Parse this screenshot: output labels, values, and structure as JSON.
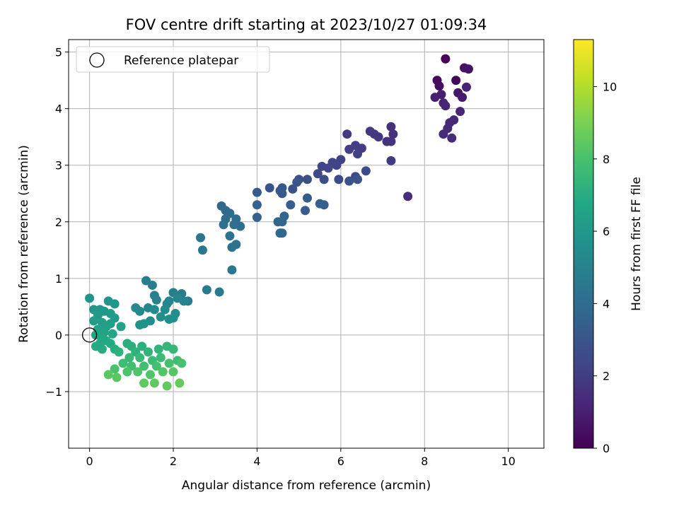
{
  "chart_data": {
    "type": "scatter",
    "title": "FOV centre drift starting at 2023/10/27 01:09:34",
    "xlabel": "Angular distance from reference (arcmin)",
    "ylabel": "Rotation from reference (arcmin)",
    "xlim": [
      -0.5,
      10.85
    ],
    "ylim": [
      -2.0,
      5.22
    ],
    "xticks": [
      0,
      2,
      4,
      6,
      8,
      10
    ],
    "xtick_labels": [
      "0",
      "2",
      "4",
      "6",
      "8",
      "10"
    ],
    "yticks": [
      -1,
      0,
      1,
      2,
      3,
      4,
      5
    ],
    "ytick_labels": [
      "−1",
      "0",
      "1",
      "2",
      "3",
      "4",
      "5"
    ],
    "grid": true,
    "legend": {
      "position": "top-left",
      "entries": [
        {
          "label": "Reference platepar",
          "marker": "open-circle"
        }
      ]
    },
    "reference_point": {
      "x": 0,
      "y": 0
    },
    "colorbar": {
      "label": "Hours from first FF file",
      "colormap": "viridis",
      "range": [
        0,
        11.3
      ],
      "ticks": [
        0,
        2,
        4,
        6,
        8,
        10
      ],
      "tick_labels": [
        "0",
        "2",
        "4",
        "6",
        "8",
        "10"
      ]
    },
    "series": [
      {
        "points": [
          [
            8.5,
            4.88,
            0.1
          ],
          [
            8.75,
            4.5,
            0.2
          ],
          [
            8.3,
            4.5,
            0.3
          ],
          [
            8.35,
            4.4,
            0.4
          ],
          [
            8.95,
            4.72,
            0.5
          ],
          [
            9.05,
            4.7,
            0.6
          ],
          [
            8.8,
            4.28,
            0.7
          ],
          [
            8.9,
            4.2,
            0.8
          ],
          [
            8.4,
            4.25,
            0.9
          ],
          [
            8.25,
            4.2,
            1.0
          ],
          [
            9.0,
            4.38,
            1.05
          ],
          [
            8.45,
            4.1,
            1.1
          ],
          [
            8.5,
            4.05,
            1.15
          ],
          [
            8.85,
            3.95,
            1.2
          ],
          [
            8.7,
            3.8,
            1.25
          ],
          [
            8.6,
            3.75,
            1.3
          ],
          [
            8.55,
            3.65,
            1.35
          ],
          [
            8.45,
            3.55,
            1.4
          ],
          [
            8.65,
            3.48,
            1.45
          ]
        ]
      },
      {
        "points": [
          [
            7.6,
            2.45,
            1.5
          ],
          [
            7.2,
            3.68,
            1.55
          ],
          [
            7.25,
            3.55,
            1.6
          ],
          [
            7.2,
            3.42,
            1.65
          ],
          [
            7.1,
            3.42,
            1.7
          ],
          [
            6.9,
            3.5,
            1.75
          ],
          [
            6.8,
            3.55,
            1.8
          ],
          [
            6.7,
            3.6,
            1.85
          ],
          [
            6.15,
            3.55,
            1.9
          ],
          [
            7.2,
            3.08,
            1.95
          ],
          [
            6.5,
            3.3,
            2.0
          ],
          [
            6.35,
            3.35,
            2.05
          ],
          [
            6.2,
            3.28,
            2.1
          ],
          [
            6.4,
            3.2,
            2.15
          ],
          [
            6.0,
            3.1,
            2.2
          ],
          [
            5.9,
            3.0,
            2.25
          ],
          [
            5.8,
            3.05,
            2.3
          ],
          [
            5.7,
            2.95,
            2.35
          ],
          [
            5.55,
            2.98,
            2.4
          ],
          [
            5.45,
            2.85,
            2.45
          ],
          [
            6.35,
            2.8,
            2.5
          ],
          [
            6.6,
            2.9,
            2.55
          ],
          [
            5.95,
            2.75,
            2.6
          ],
          [
            5.6,
            2.75,
            2.65
          ],
          [
            5.2,
            2.75,
            2.7
          ],
          [
            5.0,
            2.75,
            2.75
          ],
          [
            4.85,
            2.58,
            2.8
          ],
          [
            6.2,
            2.72,
            2.85
          ],
          [
            6.4,
            2.75,
            2.9
          ],
          [
            4.3,
            2.6,
            2.95
          ],
          [
            4.6,
            2.6,
            3.0
          ],
          [
            4.55,
            2.55,
            3.05
          ],
          [
            4.95,
            2.7,
            3.1
          ],
          [
            4.6,
            2.5,
            3.15
          ],
          [
            4.0,
            2.52,
            3.2
          ],
          [
            5.2,
            2.42,
            3.25
          ],
          [
            5.15,
            2.2,
            3.3
          ],
          [
            4.8,
            2.3,
            3.35
          ],
          [
            5.5,
            2.32,
            3.4
          ],
          [
            5.6,
            2.3,
            3.45
          ],
          [
            4.0,
            2.3,
            3.5
          ],
          [
            4.0,
            2.08,
            3.55
          ],
          [
            4.65,
            2.1,
            3.6
          ]
        ]
      },
      {
        "points": [
          [
            4.5,
            2.0,
            3.65
          ],
          [
            4.6,
            2.0,
            3.7
          ],
          [
            4.6,
            1.8,
            3.75
          ],
          [
            4.55,
            1.8,
            3.8
          ],
          [
            3.15,
            2.28,
            3.85
          ],
          [
            3.25,
            2.2,
            3.9
          ],
          [
            3.35,
            2.15,
            3.95
          ],
          [
            3.5,
            2.05,
            4.0
          ],
          [
            3.25,
            2.05,
            4.05
          ],
          [
            3.6,
            1.92,
            4.1
          ],
          [
            3.45,
            1.95,
            4.15
          ],
          [
            3.2,
            1.95,
            4.2
          ],
          [
            3.35,
            1.75,
            4.25
          ],
          [
            3.5,
            1.6,
            4.3
          ],
          [
            3.4,
            1.55,
            4.35
          ],
          [
            2.65,
            1.72,
            4.4
          ],
          [
            2.7,
            1.5,
            4.45
          ],
          [
            3.4,
            1.15,
            4.5
          ],
          [
            2.8,
            0.8,
            4.55
          ],
          [
            3.1,
            0.76,
            4.6
          ],
          [
            2.2,
            0.73,
            4.65
          ],
          [
            2.35,
            0.6,
            4.7
          ],
          [
            1.35,
            0.96,
            4.75
          ],
          [
            1.5,
            0.88,
            4.8
          ],
          [
            2.0,
            0.75,
            4.85
          ],
          [
            1.55,
            0.7,
            4.9
          ],
          [
            1.6,
            0.62,
            4.95
          ],
          [
            1.9,
            0.6,
            5.0
          ],
          [
            2.1,
            0.65,
            5.05
          ],
          [
            2.25,
            0.6,
            5.1
          ],
          [
            1.85,
            0.55,
            5.15
          ],
          [
            1.4,
            0.48,
            5.2
          ],
          [
            1.1,
            0.48,
            5.25
          ],
          [
            1.2,
            0.42,
            5.3
          ],
          [
            1.55,
            0.45,
            5.35
          ],
          [
            1.8,
            0.45,
            5.4
          ],
          [
            2.05,
            0.38,
            5.45
          ],
          [
            1.7,
            0.32,
            5.5
          ],
          [
            1.45,
            0.25,
            5.55
          ],
          [
            1.9,
            0.28,
            5.6
          ],
          [
            2.0,
            0.3,
            5.65
          ],
          [
            1.3,
            0.2,
            5.7
          ],
          [
            1.2,
            0.18,
            5.75
          ]
        ]
      },
      {
        "points": [
          [
            0.0,
            0.65,
            5.8
          ],
          [
            0.45,
            0.6,
            5.85
          ],
          [
            0.6,
            0.55,
            5.9
          ],
          [
            0.1,
            0.45,
            5.95
          ],
          [
            0.25,
            0.45,
            6.0
          ],
          [
            0.35,
            0.42,
            6.05
          ],
          [
            0.5,
            0.38,
            6.1
          ],
          [
            0.2,
            0.35,
            6.15
          ],
          [
            0.6,
            0.3,
            6.2
          ],
          [
            0.1,
            0.25,
            6.25
          ],
          [
            0.3,
            0.22,
            6.3
          ],
          [
            0.5,
            0.2,
            6.35
          ],
          [
            0.4,
            0.15,
            6.4
          ],
          [
            0.75,
            0.15,
            6.45
          ],
          [
            0.2,
            0.1,
            6.5
          ],
          [
            0.35,
            0.05,
            6.55
          ],
          [
            0.55,
            0.02,
            6.6
          ],
          [
            0.15,
            0.0,
            6.65
          ],
          [
            0.3,
            -0.05,
            6.7
          ],
          [
            0.4,
            -0.1,
            6.75
          ],
          [
            0.25,
            -0.15,
            6.8
          ],
          [
            0.5,
            -0.15,
            6.85
          ],
          [
            0.15,
            -0.2,
            6.9
          ],
          [
            0.3,
            -0.25,
            6.95
          ],
          [
            0.6,
            -0.25,
            7.0
          ],
          [
            0.9,
            -0.15,
            7.05
          ],
          [
            1.0,
            -0.2,
            7.1
          ],
          [
            1.25,
            -0.2,
            7.15
          ],
          [
            0.7,
            -0.3,
            7.2
          ],
          [
            1.1,
            -0.3,
            7.25
          ],
          [
            1.4,
            -0.3,
            7.3
          ],
          [
            1.65,
            -0.25,
            7.35
          ],
          [
            1.85,
            -0.2,
            7.4
          ],
          [
            2.0,
            -0.25,
            7.45
          ],
          [
            0.95,
            -0.4,
            7.5
          ],
          [
            1.2,
            -0.4,
            7.55
          ],
          [
            1.5,
            -0.45,
            7.6
          ],
          [
            1.7,
            -0.4,
            7.65
          ],
          [
            2.1,
            -0.45,
            7.7
          ],
          [
            0.8,
            -0.5,
            7.75
          ],
          [
            1.0,
            -0.55,
            7.8
          ],
          [
            1.3,
            -0.55,
            7.85
          ],
          [
            1.6,
            -0.55,
            7.9
          ],
          [
            1.9,
            -0.5,
            7.95
          ],
          [
            2.2,
            -0.5,
            8.0
          ],
          [
            0.6,
            -0.6,
            8.05
          ],
          [
            0.9,
            -0.65,
            8.1
          ],
          [
            1.15,
            -0.65,
            8.15
          ],
          [
            1.45,
            -0.7,
            8.2
          ],
          [
            1.75,
            -0.65,
            8.25
          ],
          [
            2.0,
            -0.65,
            8.3
          ],
          [
            0.45,
            -0.7,
            8.35
          ],
          [
            0.65,
            -0.75,
            8.4
          ],
          [
            1.3,
            -0.85,
            8.45
          ],
          [
            1.55,
            -0.85,
            8.5
          ],
          [
            1.85,
            -0.9,
            8.55
          ],
          [
            2.15,
            -0.85,
            8.6
          ]
        ]
      }
    ]
  }
}
